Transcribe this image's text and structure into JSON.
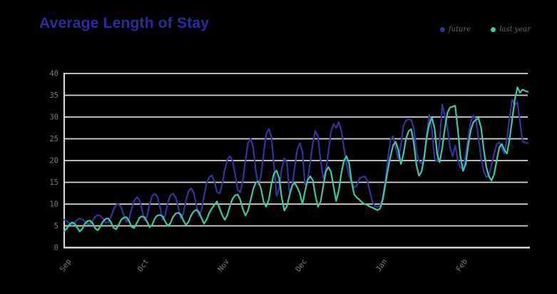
{
  "header": {
    "title": "Average Length of Stay"
  },
  "legend": [
    {
      "label": "future",
      "color": "#3333a2"
    },
    {
      "label": "last year",
      "color": "#41c7a0"
    }
  ],
  "colors": {
    "background": "#000000",
    "title_text": "#2b2b9e",
    "gridline": "#d6d6d6",
    "axis_line": "#d6d6d6",
    "tick_text": "#7d7d7d",
    "future_line": "#3333a2",
    "last_year_line": "#41c7a0"
  },
  "chart_data": {
    "type": "line",
    "title": "Average Length of Stay",
    "xlabel": "",
    "ylabel": "",
    "grid": "horizontal",
    "legend_position": "top-right",
    "x_axis": {
      "tick_labels": [
        "Sep",
        "Oct",
        "Nov",
        "Dec",
        "Jan",
        "Feb"
      ],
      "tick_day_offsets": [
        0,
        30,
        61,
        91,
        122,
        153
      ],
      "total_days": 180,
      "label_rotation_deg": -55
    },
    "y_axis": {
      "min": 0,
      "max": 40,
      "tick_step": 5,
      "tick_labels": [
        "0",
        "5",
        "10",
        "15",
        "20",
        "25",
        "30",
        "35",
        "40"
      ]
    },
    "series": [
      {
        "name": "future",
        "color": "#3333a2",
        "values": [
          6.4,
          6.1,
          5.6,
          5.2,
          5.8,
          6.4,
          6.7,
          6.5,
          6.0,
          5.4,
          5.3,
          6.2,
          7.1,
          7.5,
          7.3,
          6.6,
          5.7,
          5.8,
          7.0,
          8.6,
          9.8,
          10.0,
          9.3,
          7.5,
          5.9,
          6.6,
          8.8,
          10.7,
          11.6,
          11.0,
          8.9,
          6.2,
          7.2,
          10.0,
          11.9,
          12.4,
          11.7,
          9.3,
          6.4,
          7.4,
          10.3,
          12.0,
          12.4,
          11.6,
          9.4,
          6.7,
          7.8,
          10.8,
          12.9,
          13.6,
          12.6,
          9.9,
          7.2,
          8.6,
          11.8,
          14.8,
          16.2,
          16.6,
          15.2,
          12.8,
          12.4,
          14.5,
          17.8,
          20.2,
          21.0,
          20.0,
          16.8,
          13.2,
          12.7,
          15.5,
          20.0,
          24.0,
          25.0,
          23.0,
          17.5,
          14.4,
          16.5,
          21.5,
          26.0,
          27.3,
          25.5,
          19.0,
          11.9,
          13.5,
          18.0,
          20.5,
          19.5,
          12.7,
          14.0,
          18.5,
          22.5,
          24.0,
          22.0,
          14.4,
          15.5,
          19.5,
          24.0,
          26.8,
          25.5,
          20.0,
          16.0,
          17.5,
          22.0,
          26.5,
          28.4,
          27.5,
          28.8,
          27.0,
          23.0,
          19.5,
          16.5,
          14.8,
          13.8,
          14.2,
          15.9,
          16.2,
          16.4,
          15.5,
          13.0,
          10.5,
          9.5,
          9.4,
          9.6,
          11.5,
          15.5,
          20.5,
          24.8,
          25.6,
          23.0,
          20.4,
          23.5,
          28.0,
          29.2,
          29.5,
          29.3,
          27.5,
          22.0,
          19.8,
          19.3,
          21.0,
          26.0,
          30.5,
          27.0,
          20.4,
          19.8,
          24.5,
          32.9,
          30.0,
          27.5,
          23.0,
          21.0,
          23.5,
          20.0,
          18.4,
          18.0,
          21.0,
          25.5,
          29.0,
          30.4,
          29.5,
          25.0,
          20.5,
          17.5,
          16.2,
          16.6,
          19.0,
          21.5,
          23.8,
          24.2,
          22.8,
          21.6,
          25.0,
          30.0,
          34.0,
          32.8,
          33.4,
          29.0,
          24.4,
          24.1,
          24.0
        ]
      },
      {
        "name": "last year",
        "color": "#41c7a0",
        "values": [
          3.8,
          4.4,
          5.3,
          5.8,
          5.5,
          4.6,
          3.7,
          4.3,
          5.5,
          6.1,
          6.2,
          5.6,
          4.4,
          4.0,
          4.9,
          6.0,
          6.6,
          6.7,
          5.9,
          4.6,
          4.2,
          5.2,
          6.4,
          6.9,
          7.0,
          6.2,
          4.8,
          4.5,
          5.6,
          6.8,
          7.2,
          7.0,
          6.0,
          4.7,
          5.3,
          6.7,
          7.4,
          7.5,
          7.2,
          6.0,
          5.0,
          5.6,
          7.0,
          7.8,
          8.0,
          7.6,
          6.3,
          5.2,
          5.9,
          7.4,
          8.3,
          8.7,
          8.2,
          6.8,
          5.5,
          6.4,
          8.0,
          9.0,
          9.8,
          10.6,
          9.0,
          7.5,
          6.4,
          7.5,
          9.5,
          11.2,
          12.0,
          12.2,
          11.0,
          8.8,
          7.4,
          8.5,
          11.0,
          13.5,
          15.0,
          15.2,
          13.5,
          10.5,
          9.4,
          11.0,
          14.5,
          17.0,
          17.7,
          16.0,
          11.5,
          8.5,
          9.5,
          12.0,
          14.2,
          14.9,
          13.8,
          12.5,
          10.0,
          13.0,
          15.5,
          16.4,
          15.5,
          12.0,
          9.4,
          10.5,
          14.0,
          17.5,
          18.5,
          17.5,
          14.0,
          10.7,
          13.0,
          17.0,
          20.0,
          21.0,
          19.5,
          15.0,
          12.2,
          11.5,
          11.0,
          10.4,
          10.0,
          9.8,
          9.4,
          9.2,
          8.9,
          8.6,
          9.0,
          11.0,
          14.5,
          18.0,
          21.0,
          23.5,
          24.3,
          22.5,
          19.2,
          21.5,
          25.0,
          26.8,
          27.2,
          24.0,
          19.0,
          16.5,
          17.5,
          20.5,
          25.5,
          28.5,
          29.8,
          27.5,
          21.5,
          19.6,
          23.0,
          27.5,
          31.0,
          32.2,
          32.4,
          32.6,
          27.0,
          21.0,
          17.6,
          19.0,
          23.5,
          27.0,
          28.8,
          29.4,
          29.7,
          27.5,
          22.5,
          18.5,
          16.4,
          15.4,
          16.8,
          20.0,
          23.0,
          23.8,
          22.4,
          21.6,
          25.0,
          29.5,
          34.0,
          36.8,
          35.6,
          36.3,
          36.0,
          35.8
        ]
      }
    ]
  }
}
